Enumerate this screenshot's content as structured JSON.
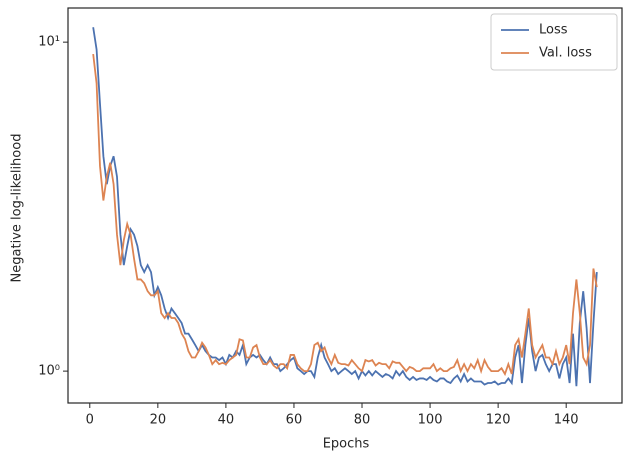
{
  "chart_data": {
    "type": "line",
    "xlabel": "Epochs",
    "ylabel": "Negative log-likelihood",
    "x": [
      1,
      2,
      3,
      4,
      5,
      6,
      7,
      8,
      9,
      10,
      11,
      12,
      13,
      14,
      15,
      16,
      17,
      18,
      19,
      20,
      21,
      22,
      23,
      24,
      25,
      26,
      27,
      28,
      29,
      30,
      31,
      32,
      33,
      34,
      35,
      36,
      37,
      38,
      39,
      40,
      41,
      42,
      43,
      44,
      45,
      46,
      47,
      48,
      49,
      50,
      51,
      52,
      53,
      54,
      55,
      56,
      57,
      58,
      59,
      60,
      61,
      62,
      63,
      64,
      65,
      66,
      67,
      68,
      69,
      70,
      71,
      72,
      73,
      74,
      75,
      76,
      77,
      78,
      79,
      80,
      81,
      82,
      83,
      84,
      85,
      86,
      87,
      88,
      89,
      90,
      91,
      92,
      93,
      94,
      95,
      96,
      97,
      98,
      99,
      100,
      101,
      102,
      103,
      104,
      105,
      106,
      107,
      108,
      109,
      110,
      111,
      112,
      113,
      114,
      115,
      116,
      117,
      118,
      119,
      120,
      121,
      122,
      123,
      124,
      125,
      126,
      127,
      128,
      129,
      130,
      131,
      132,
      133,
      134,
      135,
      136,
      137,
      138,
      139,
      140,
      141,
      142,
      143,
      144,
      145,
      146,
      147,
      148,
      149
    ],
    "series": [
      {
        "name": "Loss",
        "color": "#4c72b0",
        "values": [
          11.1,
          9.5,
          6.5,
          4.5,
          3.7,
          4.2,
          4.5,
          3.9,
          2.6,
          2.1,
          2.4,
          2.7,
          2.6,
          2.4,
          2.1,
          2.0,
          2.1,
          2.0,
          1.7,
          1.8,
          1.7,
          1.55,
          1.45,
          1.55,
          1.5,
          1.45,
          1.4,
          1.3,
          1.3,
          1.25,
          1.2,
          1.15,
          1.2,
          1.15,
          1.12,
          1.1,
          1.1,
          1.08,
          1.1,
          1.05,
          1.12,
          1.1,
          1.15,
          1.12,
          1.2,
          1.05,
          1.1,
          1.12,
          1.1,
          1.12,
          1.08,
          1.05,
          1.1,
          1.05,
          1.05,
          1.0,
          1.02,
          1.05,
          1.08,
          1.1,
          1.02,
          1.0,
          0.98,
          1.0,
          1.0,
          0.96,
          1.1,
          1.2,
          1.1,
          1.05,
          1.0,
          1.02,
          0.98,
          1.0,
          1.02,
          1.0,
          0.98,
          1.0,
          0.95,
          1.0,
          0.97,
          1.0,
          0.97,
          1.0,
          0.98,
          0.96,
          0.98,
          0.97,
          0.95,
          1.0,
          0.97,
          1.0,
          0.96,
          0.94,
          0.96,
          0.94,
          0.95,
          0.95,
          0.94,
          0.96,
          0.94,
          0.93,
          0.95,
          0.95,
          0.93,
          0.92,
          0.95,
          0.97,
          0.93,
          0.98,
          0.93,
          0.95,
          0.93,
          0.93,
          0.93,
          0.91,
          0.92,
          0.92,
          0.93,
          0.91,
          0.92,
          0.92,
          0.95,
          0.92,
          1.1,
          1.2,
          0.92,
          1.2,
          1.45,
          1.15,
          1.0,
          1.1,
          1.12,
          1.05,
          1.0,
          1.05,
          1.05,
          0.95,
          1.05,
          1.1,
          0.92,
          1.3,
          0.9,
          1.4,
          1.75,
          1.35,
          0.92,
          1.4,
          2.0
        ]
      },
      {
        "name": "Val. loss",
        "color": "#dd8452",
        "values": [
          9.2,
          7.5,
          4.2,
          3.3,
          3.9,
          4.3,
          3.7,
          2.6,
          2.1,
          2.5,
          2.8,
          2.6,
          2.2,
          1.9,
          1.9,
          1.85,
          1.75,
          1.7,
          1.7,
          1.75,
          1.5,
          1.45,
          1.5,
          1.45,
          1.45,
          1.4,
          1.3,
          1.25,
          1.15,
          1.1,
          1.1,
          1.15,
          1.22,
          1.18,
          1.12,
          1.05,
          1.08,
          1.05,
          1.06,
          1.05,
          1.08,
          1.1,
          1.12,
          1.25,
          1.24,
          1.1,
          1.1,
          1.18,
          1.2,
          1.1,
          1.05,
          1.05,
          1.08,
          1.04,
          1.02,
          1.05,
          1.05,
          1.02,
          1.12,
          1.12,
          1.05,
          1.02,
          1.0,
          1.0,
          1.05,
          1.2,
          1.22,
          1.15,
          1.18,
          1.1,
          1.05,
          1.12,
          1.06,
          1.05,
          1.05,
          1.04,
          1.08,
          1.05,
          1.02,
          1.0,
          1.08,
          1.07,
          1.08,
          1.04,
          1.06,
          1.05,
          1.05,
          1.02,
          1.07,
          1.06,
          1.06,
          1.03,
          1.0,
          1.03,
          1.02,
          1.0,
          1.0,
          1.02,
          1.02,
          1.02,
          1.05,
          1.0,
          1.02,
          1.0,
          1.0,
          1.02,
          1.03,
          1.08,
          1.0,
          1.05,
          1.0,
          1.05,
          1.02,
          1.08,
          1.0,
          1.08,
          1.03,
          1.0,
          1.0,
          1.0,
          1.02,
          0.98,
          1.05,
          0.98,
          1.2,
          1.25,
          1.1,
          1.3,
          1.55,
          1.2,
          1.1,
          1.15,
          1.2,
          1.1,
          1.1,
          1.05,
          1.15,
          1.05,
          1.1,
          1.2,
          1.05,
          1.5,
          1.9,
          1.5,
          1.1,
          1.05,
          1.2,
          2.05,
          1.8
        ]
      }
    ],
    "xlim": [
      -6.4,
      156.4
    ],
    "xticks": [
      0,
      20,
      40,
      60,
      80,
      100,
      120,
      140
    ],
    "ylim": [
      0.8,
      12.7
    ],
    "yticks": [
      {
        "value": 1,
        "label": "10⁰"
      },
      {
        "value": 10,
        "label": "10¹"
      }
    ],
    "yscale": "log",
    "legend": "upper right",
    "grid": false
  }
}
